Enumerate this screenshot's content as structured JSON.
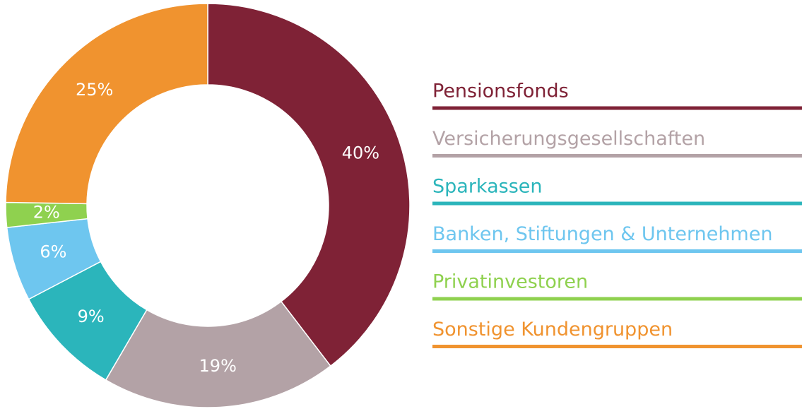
{
  "chart_data": {
    "type": "donut",
    "categories": [
      "Pensionsfonds",
      "Versicherungsgesellschaften",
      "Sparkassen",
      "Banken, Stiftungen  & Unternehmen",
      "Privatinvestoren",
      "Sonstige Kundengruppen"
    ],
    "values": [
      40,
      19,
      9,
      6,
      2,
      25
    ],
    "value_labels": [
      "40%",
      "19%",
      "9%",
      "6%",
      "2%",
      "25%"
    ],
    "colors": [
      "#7f2236",
      "#b3a2a6",
      "#2bb5bb",
      "#6ec6ef",
      "#8fd14f",
      "#f0932f"
    ],
    "legend": "right"
  }
}
